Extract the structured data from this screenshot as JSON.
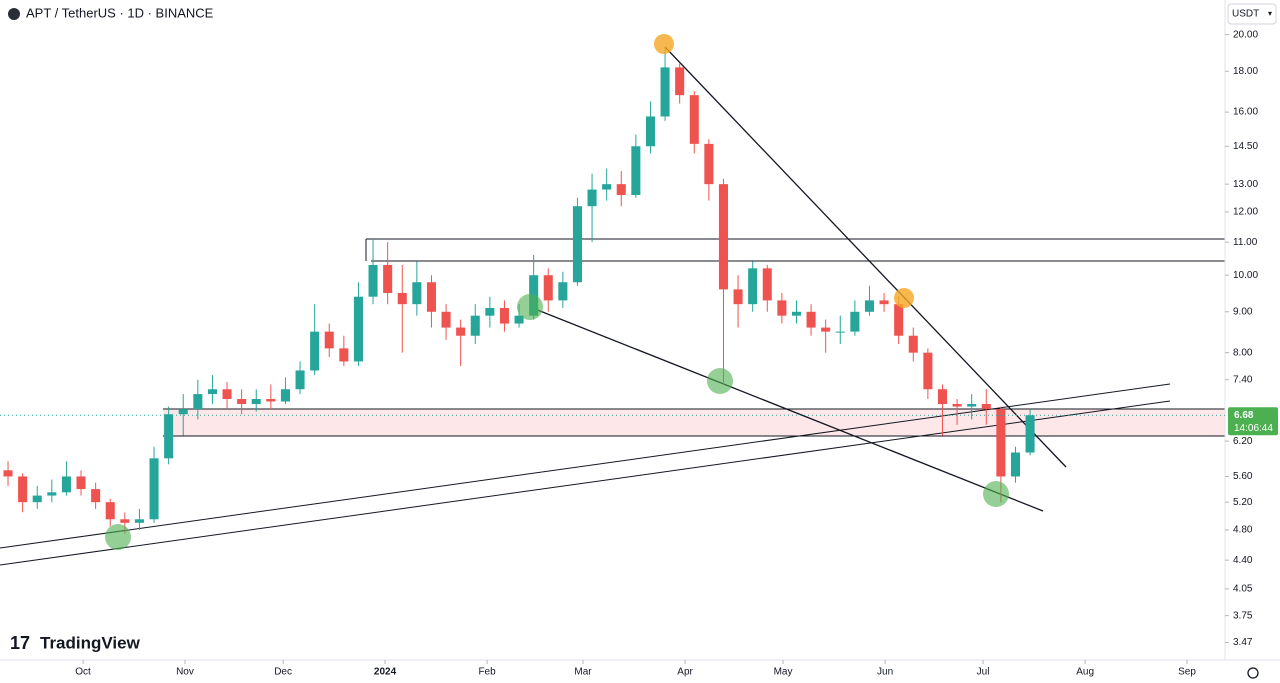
{
  "chart_data": {
    "type": "candlestick",
    "title": "APT / TetherUS · 1D · BINANCE",
    "currency": "USDT",
    "brand": "TradingView",
    "log_scale": true,
    "grid": false,
    "up_color": "#26a69a",
    "down_color": "#ef5350",
    "last_price": 6.68,
    "countdown": "14:06:44",
    "categories": [
      null,
      null,
      null,
      null,
      null,
      null,
      null,
      null,
      null,
      null,
      null,
      null,
      null,
      null,
      null,
      null,
      null,
      null,
      null,
      null,
      null,
      null,
      null,
      null,
      null,
      null,
      null,
      null,
      null,
      null,
      null,
      null,
      null,
      null,
      null,
      null,
      null,
      null,
      null,
      null,
      null,
      null,
      null,
      null,
      null,
      null,
      null,
      null,
      null,
      null,
      null,
      null,
      null,
      null,
      null,
      null,
      null,
      null,
      null,
      null,
      null,
      null,
      null,
      null,
      null,
      null,
      null,
      null,
      null,
      null,
      null
    ],
    "open": [
      5.7,
      5.6,
      5.2,
      5.3,
      5.35,
      5.6,
      5.4,
      5.2,
      4.95,
      4.9,
      4.95,
      5.9,
      6.7,
      6.8,
      7.1,
      7.2,
      7.0,
      6.9,
      7.0,
      6.95,
      7.2,
      7.6,
      8.5,
      8.1,
      7.8,
      9.4,
      10.3,
      9.5,
      9.2,
      9.8,
      9.0,
      8.6,
      8.4,
      8.9,
      9.1,
      8.7,
      8.9,
      10.0,
      9.3,
      9.8,
      12.2,
      12.8,
      13.0,
      12.6,
      14.5,
      15.8,
      18.2,
      16.8,
      14.6,
      13.0,
      9.6,
      9.2,
      10.2,
      9.3,
      8.9,
      9.0,
      8.6,
      8.5,
      8.5,
      9.0,
      9.3,
      9.2,
      8.4,
      8.0,
      7.2,
      6.9,
      6.85,
      6.9,
      6.8,
      5.6,
      6.0
    ],
    "high": [
      5.85,
      5.65,
      5.45,
      5.55,
      5.85,
      5.7,
      5.5,
      5.25,
      5.05,
      5.1,
      6.1,
      6.85,
      7.1,
      7.4,
      7.5,
      7.35,
      7.2,
      7.2,
      7.3,
      7.45,
      7.8,
      9.2,
      8.7,
      8.4,
      9.8,
      11.1,
      11.0,
      10.3,
      10.4,
      10.0,
      9.2,
      8.8,
      9.2,
      9.4,
      9.3,
      9.2,
      10.6,
      10.2,
      10.1,
      12.5,
      13.4,
      13.6,
      13.5,
      15.0,
      16.5,
      19.3,
      18.4,
      17.0,
      14.8,
      13.2,
      10.0,
      10.4,
      10.3,
      9.5,
      9.3,
      9.2,
      8.8,
      8.9,
      9.3,
      9.7,
      9.5,
      9.4,
      8.6,
      8.1,
      7.3,
      7.0,
      7.1,
      7.2,
      6.85,
      6.1,
      6.8
    ],
    "low": [
      5.45,
      5.05,
      5.1,
      5.2,
      5.3,
      5.3,
      5.1,
      4.85,
      4.75,
      4.8,
      4.9,
      5.8,
      6.3,
      6.6,
      6.9,
      6.8,
      6.7,
      6.75,
      6.8,
      6.9,
      7.1,
      7.5,
      7.9,
      7.7,
      7.7,
      9.2,
      9.2,
      8.0,
      8.9,
      8.6,
      8.3,
      7.7,
      8.2,
      8.6,
      8.5,
      8.6,
      8.8,
      9.0,
      9.1,
      9.7,
      11.0,
      12.4,
      12.2,
      12.5,
      14.2,
      15.6,
      16.4,
      14.2,
      12.4,
      7.3,
      8.6,
      9.0,
      9.0,
      8.7,
      8.7,
      8.4,
      8.0,
      8.2,
      8.4,
      8.9,
      9.0,
      8.2,
      7.8,
      7.0,
      6.3,
      6.5,
      6.6,
      6.5,
      5.2,
      5.5,
      5.95
    ],
    "close": [
      5.6,
      5.2,
      5.3,
      5.35,
      5.6,
      5.4,
      5.2,
      4.95,
      4.9,
      4.95,
      5.9,
      6.7,
      6.8,
      7.1,
      7.2,
      7.0,
      6.9,
      7.0,
      6.95,
      7.2,
      7.6,
      8.5,
      8.1,
      7.8,
      9.4,
      10.3,
      9.5,
      9.2,
      9.8,
      9.0,
      8.6,
      8.4,
      8.9,
      9.1,
      8.7,
      8.9,
      10.0,
      9.3,
      9.8,
      12.2,
      12.8,
      13.0,
      12.6,
      14.5,
      15.8,
      18.2,
      16.8,
      14.6,
      13.0,
      9.6,
      9.2,
      10.2,
      9.3,
      8.9,
      9.0,
      8.6,
      8.5,
      8.5,
      9.0,
      9.3,
      9.2,
      8.4,
      8.0,
      7.2,
      6.9,
      6.85,
      6.9,
      6.8,
      5.6,
      6.0,
      6.68
    ],
    "xlim": [
      -0.55,
      83.35
    ],
    "xticks": [
      {
        "value": 5.14,
        "label": "Oct"
      },
      {
        "value": 12.12,
        "label": "Nov"
      },
      {
        "value": 18.84,
        "label": "Dec"
      },
      {
        "value": 25.82,
        "label": "2024"
      },
      {
        "value": 32.81,
        "label": "Feb"
      },
      {
        "value": 39.38,
        "label": "Mar"
      },
      {
        "value": 46.37,
        "label": "Apr"
      },
      {
        "value": 53.08,
        "label": "May"
      },
      {
        "value": 60.07,
        "label": "Jun"
      },
      {
        "value": 66.78,
        "label": "Jul"
      },
      {
        "value": 73.77,
        "label": "Aug"
      },
      {
        "value": 80.75,
        "label": "Sep"
      }
    ],
    "ylim": [
      3.3,
      22.1
    ],
    "yticks": [
      {
        "value": 20,
        "label": "20.00"
      },
      {
        "value": 18,
        "label": "18.00"
      },
      {
        "value": 16,
        "label": "16.00"
      },
      {
        "value": 14.5,
        "label": "14.50"
      },
      {
        "value": 13,
        "label": "13.00"
      },
      {
        "value": 12,
        "label": "12.00"
      },
      {
        "value": 11,
        "label": "11.00"
      },
      {
        "value": 10,
        "label": "10.00"
      },
      {
        "value": 9,
        "label": "9.00"
      },
      {
        "value": 8,
        "label": "8.00"
      },
      {
        "value": 7.4,
        "label": "7.40"
      },
      {
        "value": 6.2,
        "label": "6.20"
      },
      {
        "value": 5.6,
        "label": "5.60"
      },
      {
        "value": 5.2,
        "label": "5.20"
      },
      {
        "value": 4.8,
        "label": "4.80"
      },
      {
        "value": 4.4,
        "label": "4.40"
      },
      {
        "value": 4.05,
        "label": "4.05"
      },
      {
        "value": 3.75,
        "label": "3.75"
      },
      {
        "value": 3.47,
        "label": "3.47"
      }
    ]
  }
}
